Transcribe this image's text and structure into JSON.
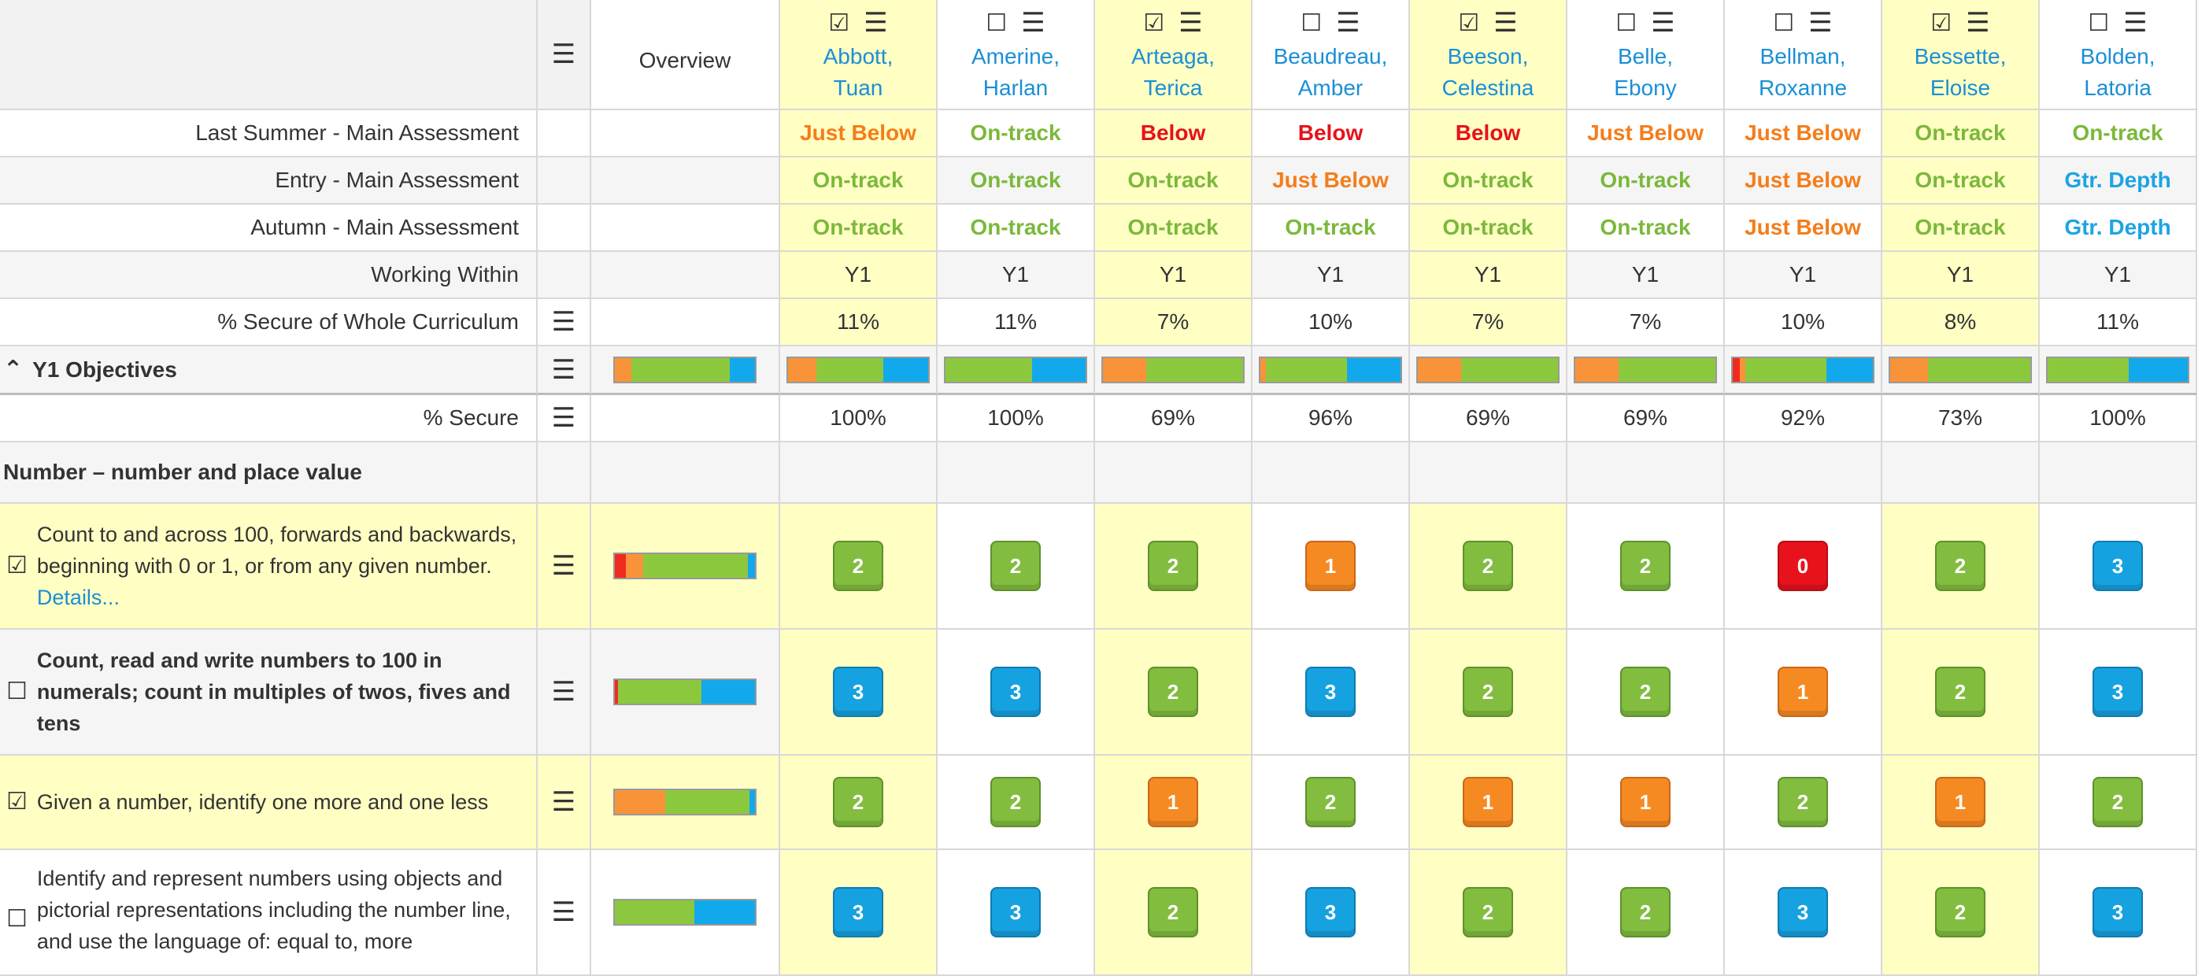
{
  "header": {
    "overview_label": "Overview"
  },
  "students": [
    {
      "name": "Abbott, Tuan",
      "line1": "Abbott,",
      "line2": "Tuan",
      "checked": true,
      "highlight": true,
      "last_summer": {
        "text": "Just Below",
        "cls": "st-orange"
      },
      "entry": {
        "text": "On-track",
        "cls": "st-green"
      },
      "autumn": {
        "text": "On-track",
        "cls": "st-green"
      },
      "working_within": "Y1",
      "pct_whole": "11%",
      "pct_secure": "100%",
      "bar": [
        0,
        25,
        60,
        40
      ],
      "scores": [
        2,
        3,
        2,
        3
      ]
    },
    {
      "name": "Amerine, Harlan",
      "line1": "Amerine,",
      "line2": "Harlan",
      "checked": false,
      "highlight": false,
      "last_summer": {
        "text": "On-track",
        "cls": "st-green"
      },
      "entry": {
        "text": "On-track",
        "cls": "st-green"
      },
      "autumn": {
        "text": "On-track",
        "cls": "st-green"
      },
      "working_within": "Y1",
      "pct_whole": "11%",
      "pct_secure": "100%",
      "bar": [
        0,
        0,
        62,
        38
      ],
      "scores": [
        2,
        3,
        2,
        3
      ]
    },
    {
      "name": "Arteaga, Terica",
      "line1": "Arteaga,",
      "line2": "Terica",
      "checked": true,
      "highlight": true,
      "last_summer": {
        "text": "Below",
        "cls": "st-red"
      },
      "entry": {
        "text": "On-track",
        "cls": "st-green"
      },
      "autumn": {
        "text": "On-track",
        "cls": "st-green"
      },
      "working_within": "Y1",
      "pct_whole": "7%",
      "pct_secure": "69%",
      "bar": [
        0,
        31,
        69,
        0
      ],
      "scores": [
        2,
        2,
        1,
        2
      ]
    },
    {
      "name": "Beaudreau, Amber",
      "line1": "Beaudreau,",
      "line2": "Amber",
      "checked": false,
      "highlight": false,
      "last_summer": {
        "text": "Below",
        "cls": "st-red"
      },
      "entry": {
        "text": "Just Below",
        "cls": "st-orange"
      },
      "autumn": {
        "text": "On-track",
        "cls": "st-green"
      },
      "working_within": "Y1",
      "pct_whole": "10%",
      "pct_secure": "96%",
      "bar": [
        0,
        4,
        58,
        38
      ],
      "scores": [
        1,
        3,
        2,
        3
      ]
    },
    {
      "name": "Beeson, Celestina",
      "line1": "Beeson,",
      "line2": "Celestina",
      "checked": true,
      "highlight": true,
      "last_summer": {
        "text": "Below",
        "cls": "st-red"
      },
      "entry": {
        "text": "On-track",
        "cls": "st-green"
      },
      "autumn": {
        "text": "On-track",
        "cls": "st-green"
      },
      "working_within": "Y1",
      "pct_whole": "7%",
      "pct_secure": "69%",
      "bar": [
        0,
        31,
        69,
        0
      ],
      "scores": [
        2,
        2,
        1,
        2
      ]
    },
    {
      "name": "Belle, Ebony",
      "line1": "Belle,",
      "line2": "Ebony",
      "checked": false,
      "highlight": false,
      "last_summer": {
        "text": "Just Below",
        "cls": "st-orange"
      },
      "entry": {
        "text": "On-track",
        "cls": "st-green"
      },
      "autumn": {
        "text": "On-track",
        "cls": "st-green"
      },
      "working_within": "Y1",
      "pct_whole": "7%",
      "pct_secure": "69%",
      "bar": [
        0,
        31,
        69,
        0
      ],
      "scores": [
        2,
        2,
        1,
        2
      ]
    },
    {
      "name": "Bellman, Roxanne",
      "line1": "Bellman,",
      "line2": "Roxanne",
      "checked": false,
      "highlight": false,
      "last_summer": {
        "text": "Just Below",
        "cls": "st-orange"
      },
      "entry": {
        "text": "Just Below",
        "cls": "st-orange"
      },
      "autumn": {
        "text": "Just Below",
        "cls": "st-orange"
      },
      "working_within": "Y1",
      "pct_whole": "10%",
      "pct_secure": "92%",
      "bar": [
        5,
        4,
        58,
        33
      ],
      "scores": [
        0,
        1,
        2,
        3
      ]
    },
    {
      "name": "Bessette, Eloise",
      "line1": "Bessette,",
      "line2": "Eloise",
      "checked": true,
      "highlight": true,
      "last_summer": {
        "text": "On-track",
        "cls": "st-green"
      },
      "entry": {
        "text": "On-track",
        "cls": "st-green"
      },
      "autumn": {
        "text": "On-track",
        "cls": "st-green"
      },
      "working_within": "Y1",
      "pct_whole": "8%",
      "pct_secure": "73%",
      "bar": [
        0,
        27,
        73,
        0
      ],
      "scores": [
        2,
        2,
        1,
        2
      ]
    },
    {
      "name": "Bolden, Latoria",
      "line1": "Bolden,",
      "line2": "Latoria",
      "checked": false,
      "highlight": false,
      "last_summer": {
        "text": "On-track",
        "cls": "st-green"
      },
      "entry": {
        "text": "Gtr. Depth",
        "cls": "st-blue"
      },
      "autumn": {
        "text": "Gtr. Depth",
        "cls": "st-blue"
      },
      "working_within": "Y1",
      "pct_whole": "11%",
      "pct_secure": "100%",
      "bar": [
        0,
        0,
        58,
        42
      ],
      "scores": [
        3,
        3,
        2,
        3
      ]
    }
  ],
  "rows": {
    "last_summer": "Last Summer - Main Assessment",
    "entry": "Entry - Main Assessment",
    "autumn": "Autumn - Main Assessment",
    "working_within": "Working Within",
    "pct_whole": "% Secure of Whole Curriculum",
    "objectives_title": "Y1 Objectives",
    "pct_secure": "% Secure",
    "section": "Number – number and place value"
  },
  "overview_bars": {
    "objectives": [
      0,
      12,
      70,
      18
    ],
    "obj1": [
      8,
      12,
      75,
      5
    ],
    "obj2": [
      2,
      0,
      60,
      38
    ],
    "obj3": [
      0,
      36,
      60,
      4
    ],
    "obj4": [
      0,
      0,
      57,
      43
    ]
  },
  "objectives": [
    {
      "text": "Count to and across 100, forwards and backwards, beginning with 0 or 1, or from any given number.",
      "link": "Details...",
      "checked": true,
      "bold": false,
      "highlight": true,
      "scores": [
        2,
        2,
        2,
        1,
        2,
        2,
        0,
        2,
        3
      ]
    },
    {
      "text": "Count, read and write numbers to 100 in numerals; count in multiples of twos, fives and tens",
      "link": "",
      "checked": false,
      "bold": true,
      "highlight": false,
      "scores": [
        3,
        3,
        2,
        3,
        2,
        2,
        1,
        2,
        3
      ]
    },
    {
      "text": "Given a number, identify one more and one less",
      "link": "",
      "checked": true,
      "bold": false,
      "highlight": true,
      "scores": [
        2,
        2,
        1,
        2,
        1,
        1,
        2,
        1,
        2
      ]
    },
    {
      "text": "Identify and represent numbers using objects and pictorial representations including the number line, and use the language of: equal to, more",
      "link": "",
      "checked": false,
      "bold": false,
      "highlight": false,
      "scores": [
        3,
        3,
        2,
        3,
        2,
        2,
        3,
        2,
        3
      ]
    }
  ],
  "icons": {
    "menu": "menu-icon",
    "checkbox_checked": "checkbox-checked-icon",
    "checkbox_empty": "checkbox-empty-icon",
    "collapse": "chevron-double-up-icon"
  },
  "colors": {
    "highlight": "#ffffc4",
    "link": "#1a8fd6",
    "green": "#82bd3f",
    "orange": "#f68a22",
    "red": "#e8121c",
    "blue": "#16a2e0"
  }
}
